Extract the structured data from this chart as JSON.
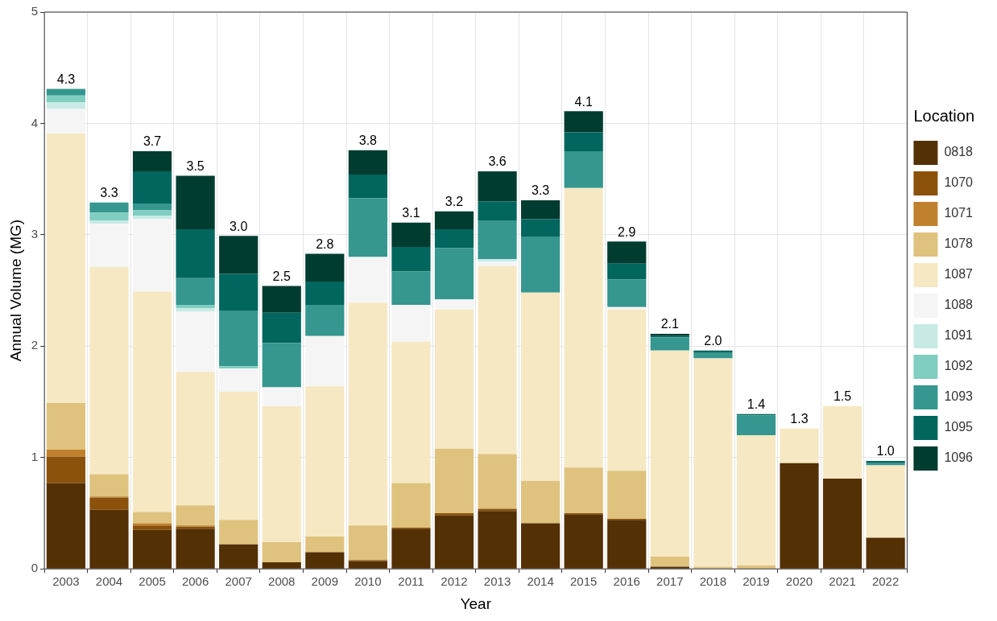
{
  "chart_data": {
    "type": "bar",
    "stacked": true,
    "xlabel": "Year",
    "ylabel": "Annual Volume (MG)",
    "legend_title": "Location",
    "legend": "right",
    "grid": true,
    "categories": [
      "2003",
      "2004",
      "2005",
      "2006",
      "2007",
      "2008",
      "2009",
      "2010",
      "2011",
      "2012",
      "2013",
      "2014",
      "2015",
      "2016",
      "2017",
      "2018",
      "2019",
      "2020",
      "2021",
      "2022"
    ],
    "ylim": [
      0,
      5
    ],
    "yticks": [
      0,
      1,
      2,
      3,
      4,
      5
    ],
    "totals": [
      "4.3",
      "3.3",
      "3.7",
      "3.5",
      "3.0",
      "2.5",
      "2.8",
      "3.8",
      "3.1",
      "3.2",
      "3.6",
      "3.3",
      "4.1",
      "2.9",
      "2.1",
      "2.0",
      "1.4",
      "1.3",
      "1.5",
      "1.0"
    ],
    "series": [
      {
        "name": "0818",
        "color": "#543005",
        "values": [
          0.77,
          0.53,
          0.35,
          0.36,
          0.22,
          0.06,
          0.15,
          0.07,
          0.36,
          0.48,
          0.52,
          0.41,
          0.49,
          0.44,
          0.02,
          0,
          0,
          0.95,
          0.81,
          0.28
        ]
      },
      {
        "name": "1070",
        "color": "#8c510a",
        "values": [
          0.24,
          0.11,
          0.04,
          0.02,
          0,
          0,
          0,
          0.01,
          0.01,
          0.02,
          0.02,
          0,
          0.01,
          0.01,
          0,
          0,
          0,
          0,
          0,
          0
        ]
      },
      {
        "name": "1071",
        "color": "#bf812d",
        "values": [
          0.06,
          0.01,
          0.02,
          0.01,
          0,
          0,
          0,
          0,
          0,
          0,
          0,
          0,
          0,
          0,
          0,
          0,
          0,
          0,
          0,
          0
        ]
      },
      {
        "name": "1078",
        "color": "#dfc27d",
        "values": [
          0.42,
          0.2,
          0.1,
          0.18,
          0.22,
          0.18,
          0.14,
          0.31,
          0.4,
          0.58,
          0.49,
          0.38,
          0.41,
          0.43,
          0.09,
          0.02,
          0.03,
          0,
          0,
          0
        ]
      },
      {
        "name": "1087",
        "color": "#f6e8c3",
        "values": [
          2.42,
          1.86,
          1.98,
          1.2,
          1.15,
          1.22,
          1.35,
          2.0,
          1.27,
          1.25,
          1.69,
          1.69,
          2.51,
          1.45,
          1.85,
          1.87,
          1.17,
          0.31,
          0.65,
          0.65
        ]
      },
      {
        "name": "1088",
        "color": "#f5f5f5",
        "values": [
          0.22,
          0.39,
          0.65,
          0.54,
          0.21,
          0.17,
          0.45,
          0.41,
          0.33,
          0.09,
          0.04,
          0,
          0,
          0.02,
          0,
          0,
          0,
          0,
          0,
          0
        ]
      },
      {
        "name": "1091",
        "color": "#c7eae5",
        "values": [
          0.06,
          0.03,
          0.03,
          0.03,
          0,
          0,
          0,
          0,
          0,
          0,
          0.02,
          0,
          0,
          0,
          0,
          0,
          0,
          0,
          0,
          0
        ]
      },
      {
        "name": "1092",
        "color": "#80cdc1",
        "values": [
          0.06,
          0.07,
          0.05,
          0.03,
          0.02,
          0,
          0,
          0,
          0,
          0,
          0,
          0,
          0,
          0,
          0,
          0,
          0,
          0,
          0,
          0
        ]
      },
      {
        "name": "1093",
        "color": "#35978f",
        "values": [
          0.06,
          0.09,
          0.06,
          0.24,
          0.5,
          0.4,
          0.28,
          0.53,
          0.3,
          0.46,
          0.35,
          0.5,
          0.33,
          0.25,
          0.12,
          0.05,
          0.18,
          0,
          0,
          0.02
        ]
      },
      {
        "name": "1095",
        "color": "#01665e",
        "values": [
          0,
          0,
          0.29,
          0.44,
          0.33,
          0.27,
          0.21,
          0.21,
          0.22,
          0.17,
          0.17,
          0.16,
          0.17,
          0.14,
          0.01,
          0.02,
          0.01,
          0,
          0,
          0.02
        ]
      },
      {
        "name": "1096",
        "color": "#003c30",
        "values": [
          0,
          0,
          0.18,
          0.48,
          0.34,
          0.24,
          0.25,
          0.22,
          0.22,
          0.16,
          0.27,
          0.17,
          0.19,
          0.2,
          0.02,
          0,
          0,
          0,
          0,
          0
        ]
      }
    ]
  }
}
